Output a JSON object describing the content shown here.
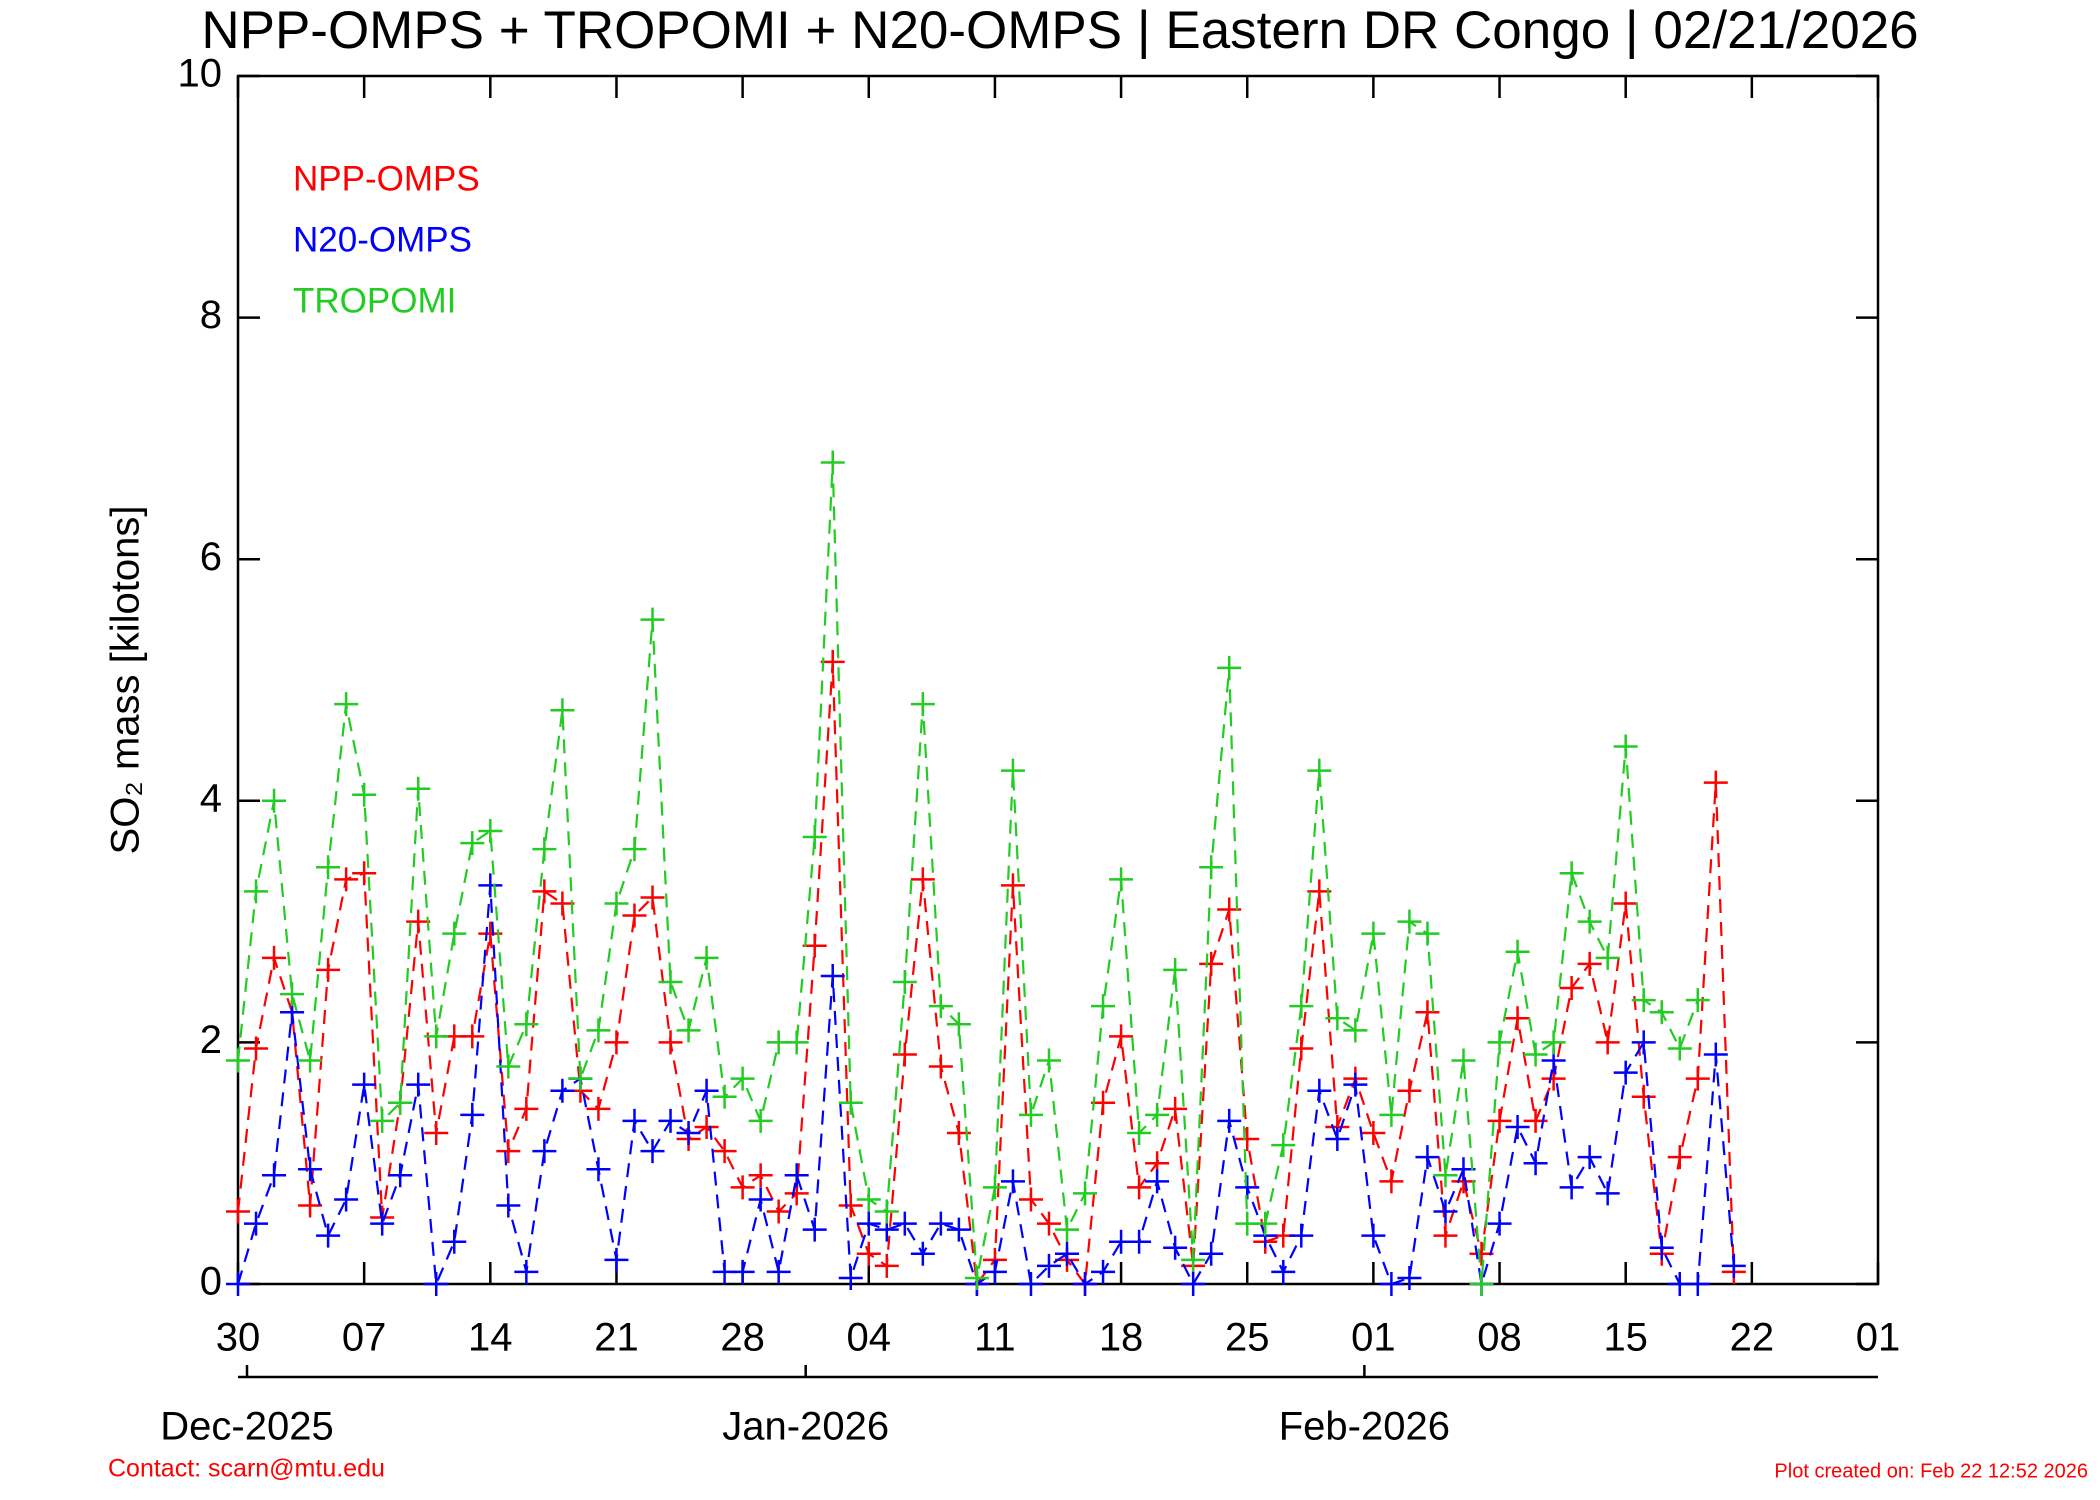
{
  "chart_data": {
    "type": "line",
    "title": "NPP-OMPS + TROPOMI + N20-OMPS | Eastern DR Congo | 02/21/2026",
    "ylabel": "SO₂ mass [kilotons]",
    "contact": "Contact: scarn@mtu.edu",
    "created": "Plot created on: Feb 22 12:52 2026",
    "x": [
      0,
      1,
      2,
      3,
      4,
      5,
      6,
      7,
      8,
      9,
      10,
      11,
      12,
      13,
      14,
      15,
      16,
      17,
      18,
      19,
      20,
      21,
      22,
      23,
      24,
      25,
      26,
      27,
      28,
      29,
      30,
      31,
      32,
      33,
      34,
      35,
      36,
      37,
      38,
      39,
      40,
      41,
      42,
      43,
      44,
      45,
      46,
      47,
      48,
      49,
      50,
      51,
      52,
      53,
      54,
      55,
      56,
      57,
      58,
      59,
      60,
      61,
      62,
      63,
      64,
      65,
      66,
      67,
      68,
      69,
      70,
      71,
      72,
      73,
      74,
      75,
      76,
      77,
      78,
      79,
      80,
      81,
      82,
      83
    ],
    "xlim": [
      0,
      91
    ],
    "xticks": [
      {
        "value": 0,
        "label": "30"
      },
      {
        "value": 7,
        "label": "07"
      },
      {
        "value": 14,
        "label": "14"
      },
      {
        "value": 21,
        "label": "21"
      },
      {
        "value": 28,
        "label": "28"
      },
      {
        "value": 35,
        "label": "04"
      },
      {
        "value": 42,
        "label": "11"
      },
      {
        "value": 49,
        "label": "18"
      },
      {
        "value": 56,
        "label": "25"
      },
      {
        "value": 63,
        "label": "01"
      },
      {
        "value": 70,
        "label": "08"
      },
      {
        "value": 77,
        "label": "15"
      },
      {
        "value": 84,
        "label": "22"
      },
      {
        "value": 91,
        "label": "01"
      }
    ],
    "month_ticks": [
      {
        "value": 0.5,
        "label": "Dec-2025"
      },
      {
        "value": 31.5,
        "label": "Jan-2026"
      },
      {
        "value": 62.5,
        "label": "Feb-2026"
      }
    ],
    "ylim": [
      0,
      10
    ],
    "yticks": [
      0,
      2,
      4,
      6,
      8,
      10
    ],
    "legend": "upper left",
    "series": [
      {
        "name": "NPP-OMPS",
        "color": "#ff0000",
        "values": [
          0.6,
          1.95,
          2.7,
          2.25,
          0.65,
          2.6,
          3.35,
          3.4,
          0.55,
          1.5,
          3.0,
          1.25,
          2.05,
          2.05,
          2.9,
          1.1,
          1.45,
          3.25,
          3.15,
          1.6,
          1.45,
          2.0,
          3.05,
          3.2,
          2.0,
          1.2,
          1.3,
          1.1,
          0.8,
          0.9,
          0.6,
          0.75,
          2.8,
          5.15,
          0.65,
          0.25,
          0.15,
          1.9,
          3.35,
          1.8,
          1.25,
          0.0,
          0.2,
          3.3,
          0.7,
          0.5,
          0.2,
          0.0,
          1.5,
          2.05,
          0.8,
          1.0,
          1.45,
          0.15,
          2.65,
          3.1,
          1.2,
          0.35,
          0.4,
          1.95,
          3.25,
          1.3,
          1.7,
          1.25,
          0.85,
          1.6,
          2.25,
          0.4,
          0.85,
          0.25,
          1.35,
          2.2,
          1.35,
          1.7,
          2.45,
          2.65,
          2.0,
          3.15,
          1.55,
          0.25,
          1.05,
          1.7,
          4.15,
          0.1
        ]
      },
      {
        "name": "N20-OMPS",
        "color": "#0000ff",
        "values": [
          0.0,
          0.5,
          0.9,
          2.25,
          0.95,
          0.4,
          0.7,
          1.65,
          0.5,
          0.9,
          1.65,
          0.0,
          0.35,
          1.4,
          3.3,
          0.65,
          0.1,
          1.1,
          1.6,
          1.7,
          0.95,
          0.2,
          1.35,
          1.1,
          1.35,
          1.25,
          1.6,
          0.1,
          0.1,
          0.7,
          0.1,
          0.9,
          0.45,
          2.55,
          0.05,
          0.5,
          0.45,
          0.5,
          0.25,
          0.5,
          0.45,
          0.0,
          0.1,
          0.85,
          0.0,
          0.15,
          0.25,
          0.0,
          0.1,
          0.35,
          0.35,
          0.85,
          0.3,
          0.0,
          0.25,
          1.35,
          0.8,
          0.4,
          0.1,
          0.4,
          1.6,
          1.2,
          1.65,
          0.4,
          0.0,
          0.05,
          1.05,
          0.6,
          0.95,
          0.0,
          0.5,
          1.3,
          1.0,
          1.85,
          0.8,
          1.05,
          0.75,
          1.75,
          2.0,
          0.3,
          0.0,
          0.0,
          1.9,
          0.15
        ]
      },
      {
        "name": "TROPOMI",
        "color": "#22cc22",
        "values": [
          1.85,
          3.25,
          4.0,
          2.4,
          1.85,
          3.45,
          4.8,
          4.05,
          1.35,
          1.5,
          4.1,
          2.05,
          2.9,
          3.65,
          3.75,
          1.8,
          2.15,
          3.6,
          4.75,
          1.7,
          2.1,
          3.15,
          3.6,
          5.5,
          2.5,
          2.1,
          2.7,
          1.55,
          1.7,
          1.35,
          2.0,
          2.0,
          3.7,
          6.8,
          1.5,
          0.7,
          0.6,
          2.5,
          4.8,
          2.3,
          2.15,
          0.05,
          0.8,
          4.25,
          1.4,
          1.85,
          0.45,
          0.75,
          2.3,
          3.35,
          1.25,
          1.4,
          2.6,
          0.2,
          3.45,
          5.1,
          0.5,
          0.5,
          1.15,
          2.3,
          4.25,
          2.2,
          2.1,
          2.9,
          1.4,
          3.0,
          2.9,
          0.9,
          1.85,
          0.0,
          2.0,
          2.75,
          1.9,
          2.0,
          3.4,
          3.0,
          2.7,
          4.45,
          2.35,
          2.25,
          1.95,
          2.35,
          null,
          null
        ]
      }
    ]
  }
}
